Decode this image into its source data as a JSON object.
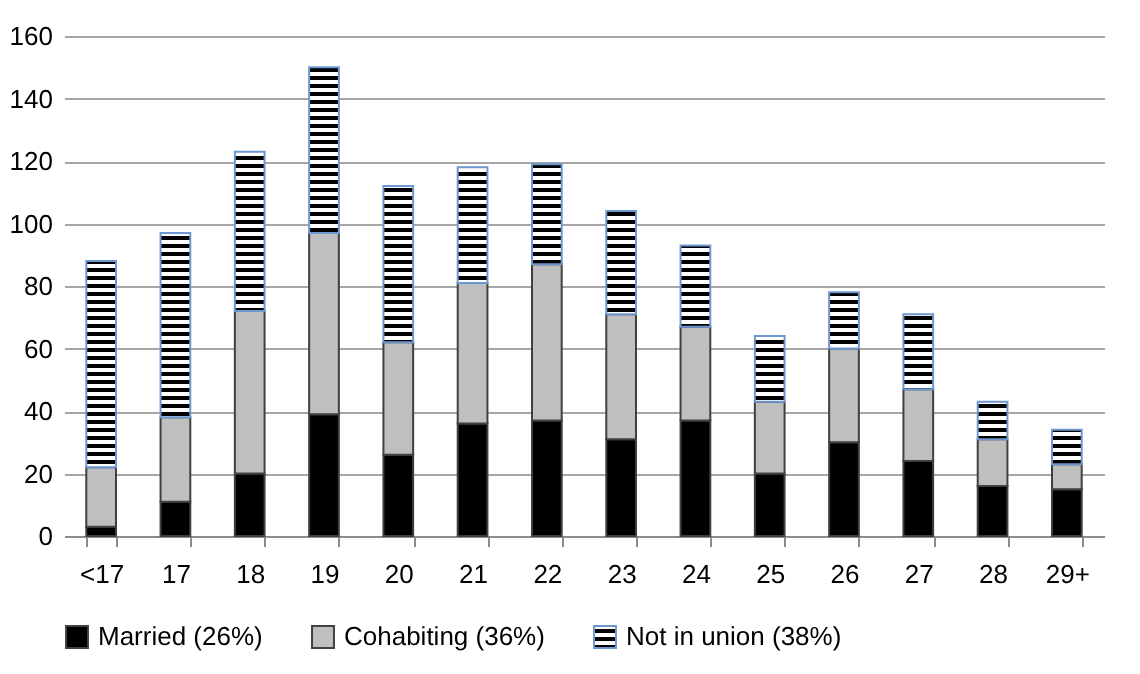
{
  "chart_data": {
    "type": "bar",
    "stacked": true,
    "categories": [
      "<17",
      "17",
      "18",
      "19",
      "20",
      "21",
      "22",
      "23",
      "24",
      "25",
      "26",
      "27",
      "28",
      "29+"
    ],
    "series": [
      {
        "name": "Married (26%)",
        "color": "#000000",
        "values": [
          3,
          11,
          20,
          39,
          26,
          36,
          37,
          31,
          37,
          20,
          30,
          24,
          16,
          15
        ]
      },
      {
        "name": "Cohabiting (36%)",
        "color": "#bfbfbf",
        "values": [
          19,
          27,
          52,
          58,
          36,
          45,
          50,
          40,
          30,
          23,
          30,
          23,
          15,
          8
        ]
      },
      {
        "name": "Not in union (38%)",
        "color": "#6d97cf",
        "values": [
          66,
          59,
          51,
          53,
          50,
          37,
          32,
          33,
          26,
          21,
          18,
          24,
          12,
          11
        ]
      }
    ],
    "ylim": [
      0,
      160
    ],
    "yticks": [
      0,
      20,
      40,
      60,
      80,
      100,
      120,
      140,
      160
    ],
    "grid": "y",
    "legend": "bottom"
  }
}
